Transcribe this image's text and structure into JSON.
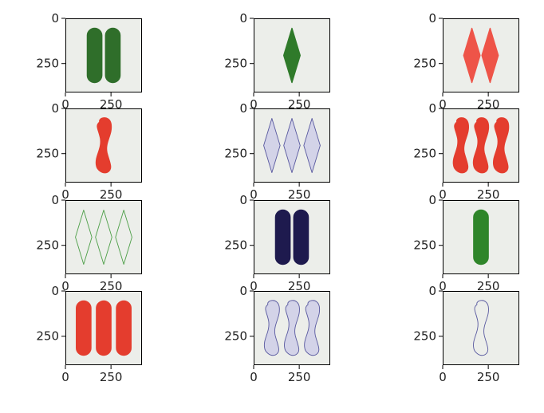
{
  "chart_data": {
    "type": "image-grid",
    "rows": 4,
    "cols": 3,
    "tick_labels": {
      "x": [
        "0",
        "250"
      ],
      "y": [
        "0",
        "250"
      ]
    },
    "panels": [
      {
        "shape": "oval",
        "count": 2,
        "fill": "solid",
        "color": "#2f6e2a"
      },
      {
        "shape": "diamond",
        "count": 1,
        "fill": "solid",
        "color": "#2f7a2a"
      },
      {
        "shape": "diamond",
        "count": 2,
        "fill": "solid",
        "color": "#ee5448"
      },
      {
        "shape": "squiggle",
        "count": 1,
        "fill": "solid",
        "color": "#e43d2e"
      },
      {
        "shape": "diamond",
        "count": 3,
        "fill": "shaded",
        "color": "#5a5aa0"
      },
      {
        "shape": "squiggle",
        "count": 3,
        "fill": "solid",
        "color": "#e43d2e"
      },
      {
        "shape": "diamond",
        "count": 3,
        "fill": "outline",
        "color": "#4fa04a"
      },
      {
        "shape": "oval",
        "count": 2,
        "fill": "solid",
        "color": "#1e1a4e"
      },
      {
        "shape": "oval",
        "count": 1,
        "fill": "solid",
        "color": "#2f852a"
      },
      {
        "shape": "oval",
        "count": 3,
        "fill": "solid",
        "color": "#e43d2e"
      },
      {
        "shape": "squiggle",
        "count": 3,
        "fill": "shaded",
        "color": "#5a5aa0"
      },
      {
        "shape": "squiggle",
        "count": 1,
        "fill": "outline",
        "color": "#5a5aa0"
      }
    ]
  }
}
